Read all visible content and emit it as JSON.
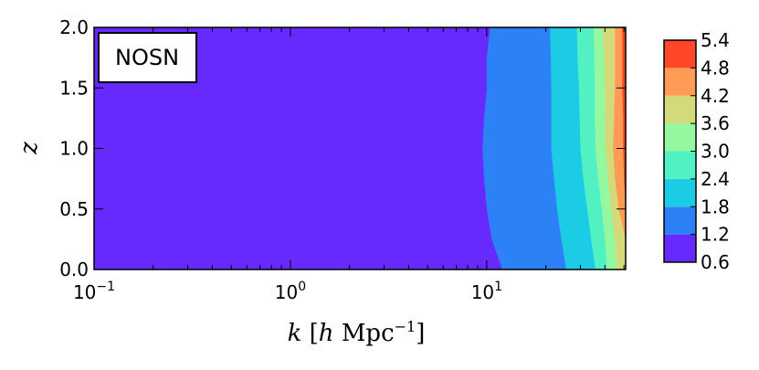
{
  "chart_data": {
    "type": "contour",
    "annotation": "NOSN",
    "xlabel": {
      "var": "k",
      "open": "[",
      "unitvar": "h",
      "unit": "Mpc",
      "exponent": "−1",
      "close": "]"
    },
    "ylabel": "z",
    "xscale": "log",
    "xlim": [
      0.1,
      51
    ],
    "ylim": [
      0,
      2
    ],
    "xticks": [
      {
        "value": 0.1,
        "label": "10",
        "exponent": "−1"
      },
      {
        "value": 1,
        "label": "10",
        "exponent": "0"
      },
      {
        "value": 10,
        "label": "10",
        "exponent": "1"
      }
    ],
    "yticks": [
      {
        "value": 0,
        "label": "0.0"
      },
      {
        "value": 0.5,
        "label": "0.5"
      },
      {
        "value": 1,
        "label": "1.0"
      },
      {
        "value": 1.5,
        "label": "1.5"
      },
      {
        "value": 2,
        "label": "2.0"
      }
    ],
    "z": [
      0,
      0.25,
      0.5,
      0.75,
      1,
      1.25,
      1.5,
      1.75,
      2
    ],
    "boundaries": [
      {
        "k": [
          12,
          10.6,
          10.0,
          9.7,
          9.5,
          9.7,
          10.0,
          10.0,
          10.4
        ]
      },
      {
        "k": [
          25.4,
          24,
          22.8,
          22,
          21.3,
          21.3,
          21.3,
          21.2,
          21.0
        ]
      },
      {
        "k": [
          35.8,
          34,
          32.5,
          31,
          30,
          29.7,
          29.5,
          29,
          28.8
        ]
      },
      {
        "k": [
          41,
          40,
          38.5,
          37,
          35.8,
          35.5,
          35.5,
          35.3,
          35
        ]
      },
      {
        "k": [
          46,
          45,
          43,
          41.5,
          40.3,
          40,
          40,
          39.5,
          39
        ]
      },
      {
        "k": [
          51,
          51,
          47,
          45,
          44,
          44.5,
          45,
          45,
          45
        ]
      },
      {
        "k": [
          51,
          51,
          51,
          50,
          49.5,
          49.5,
          49,
          49,
          49
        ]
      }
    ],
    "colorbar": {
      "ticks": [
        0.6,
        1.2,
        1.8,
        2.4,
        {
          "value": 3,
          "label": "3.0"
        },
        3.6,
        4.2,
        4.8,
        5.4
      ],
      "colors": [
        "#6629fe",
        "#2c81f7",
        "#1ccbe4",
        "#52f1c4",
        "#94f8a0",
        "#d4d97a",
        "#ff9b55",
        "#ff4628"
      ]
    }
  }
}
